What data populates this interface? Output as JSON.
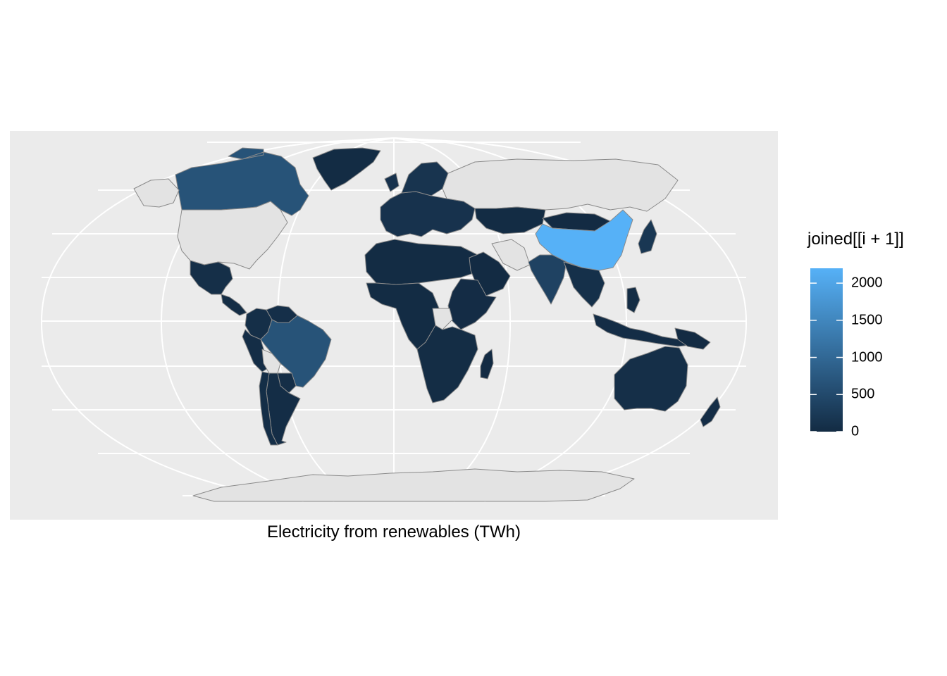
{
  "map": {
    "caption": "Electricity from renewables (TWh)",
    "colors": {
      "panel_background": "#EBEBEB",
      "graticule": "#FFFFFF",
      "no_data": "#E3E3E3",
      "border": "#8A8A8A",
      "low": "#132B43",
      "high": "#56B1F7"
    },
    "legend": {
      "title": "joined[[i + 1]]",
      "min": 0,
      "max": 2200,
      "breaks": [
        {
          "value": 0,
          "label": "0"
        },
        {
          "value": 500,
          "label": "500"
        },
        {
          "value": 1000,
          "label": "1000"
        },
        {
          "value": 1500,
          "label": "1500"
        },
        {
          "value": 2000,
          "label": "2000"
        }
      ]
    },
    "regions": [
      {
        "name": "Canada",
        "value": 650
      },
      {
        "name": "Greenland",
        "value": 10
      },
      {
        "name": "United States",
        "value": null
      },
      {
        "name": "Mexico",
        "value": 60
      },
      {
        "name": "Central America",
        "value": 30
      },
      {
        "name": "Colombia",
        "value": 60
      },
      {
        "name": "Venezuela",
        "value": 70
      },
      {
        "name": "Peru",
        "value": 35
      },
      {
        "name": "Brazil",
        "value": 650
      },
      {
        "name": "Bolivia",
        "value": null
      },
      {
        "name": "Paraguay",
        "value": 50
      },
      {
        "name": "Argentina",
        "value": 40
      },
      {
        "name": "Chile",
        "value": 45
      },
      {
        "name": "Europe",
        "value": 120
      },
      {
        "name": "Scandinavia",
        "value": 150
      },
      {
        "name": "Russia",
        "value": null
      },
      {
        "name": "Iran",
        "value": null
      },
      {
        "name": "Kazakhstan",
        "value": 10
      },
      {
        "name": "Mongolia",
        "value": 2
      },
      {
        "name": "China",
        "value": 2200
      },
      {
        "name": "India",
        "value": 380
      },
      {
        "name": "Southeast Asia",
        "value": 80
      },
      {
        "name": "Japan",
        "value": 200
      },
      {
        "name": "North Africa",
        "value": 10
      },
      {
        "name": "West and Central Africa",
        "value": 15
      },
      {
        "name": "Arabian Peninsula",
        "value": 5
      },
      {
        "name": "East Africa",
        "value": 20
      },
      {
        "name": "South Sudan",
        "value": null
      },
      {
        "name": "Southern Africa",
        "value": 30
      },
      {
        "name": "Madagascar",
        "value": 2
      },
      {
        "name": "Indonesia",
        "value": 40
      },
      {
        "name": "Philippines",
        "value": 25
      },
      {
        "name": "New Guinea",
        "value": 5
      },
      {
        "name": "Australia",
        "value": 60
      },
      {
        "name": "New Zealand",
        "value": 35
      },
      {
        "name": "Antarctica",
        "value": null
      }
    ]
  }
}
